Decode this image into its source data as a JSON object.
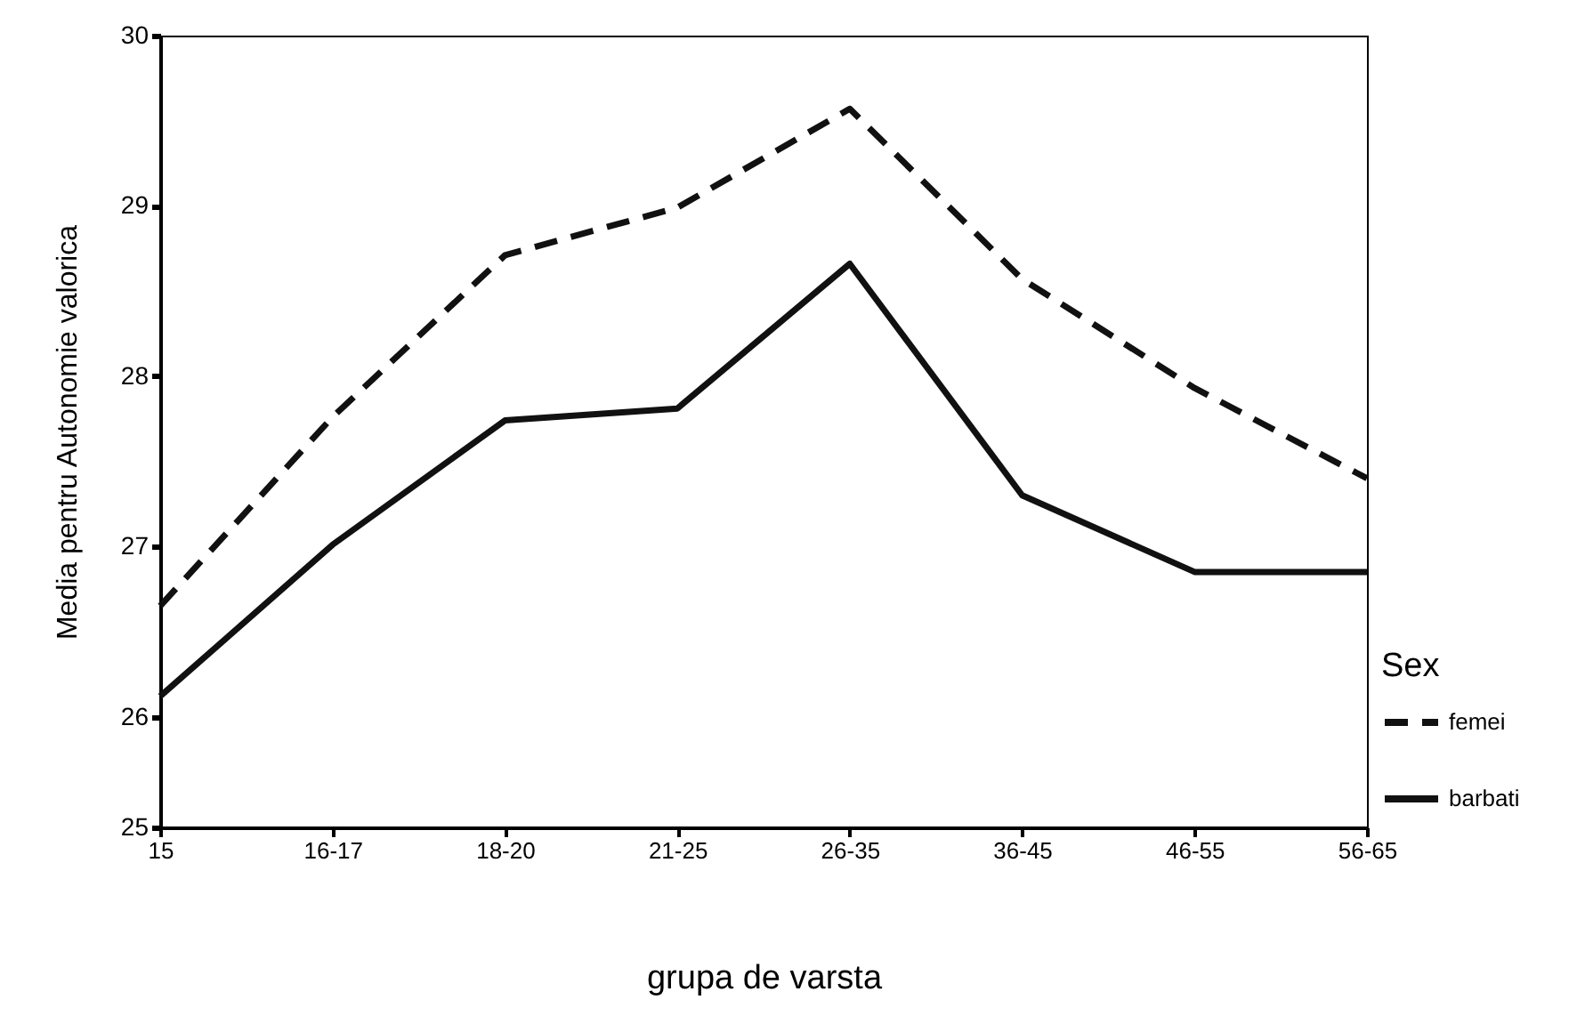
{
  "chart_data": {
    "type": "line",
    "xlabel": "grupa de varsta",
    "ylabel": "Media pentru Autonomie valorica",
    "legend_title": "Sex",
    "categories": [
      "15",
      "16-17",
      "18-20",
      "21-25",
      "26-35",
      "36-45",
      "46-55",
      "56-65"
    ],
    "series": [
      {
        "name": "femei",
        "color": "#111111",
        "line_style": "dashed",
        "values": [
          26.65,
          27.76,
          28.71,
          28.99,
          29.57,
          28.57,
          27.93,
          27.4
        ]
      },
      {
        "name": "barbati",
        "color": "#111111",
        "line_style": "solid",
        "values": [
          26.12,
          27.01,
          27.74,
          27.81,
          28.66,
          27.3,
          26.85,
          26.85
        ]
      }
    ],
    "ylim": [
      25.35,
      30
    ],
    "yticks": [
      {
        "value": 25.35,
        "label": "25"
      },
      26,
      27,
      28,
      29,
      30
    ],
    "grid": false,
    "legend": "bottom right",
    "marker": "none"
  }
}
